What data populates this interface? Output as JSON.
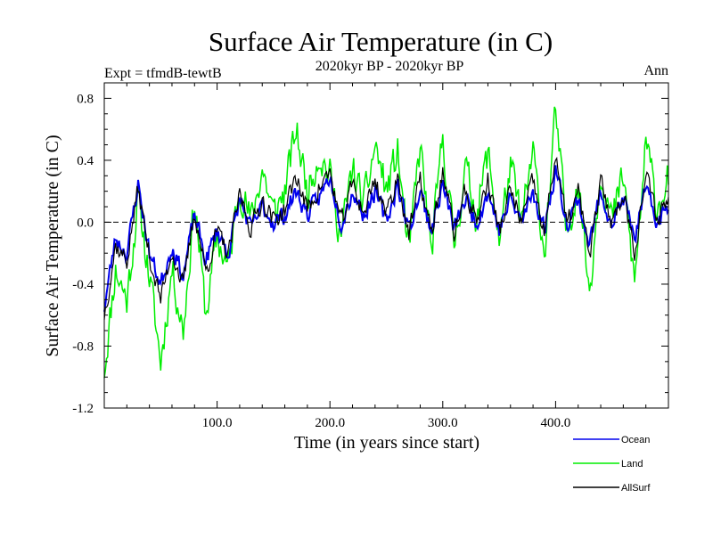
{
  "chart_data": {
    "type": "line",
    "title": "Surface Air Temperature (in C)",
    "subtitle": "2020kyr BP - 2020kyr BP",
    "left_label": "Expt = tfmdB-tewtB",
    "right_label": "Ann",
    "xlabel": "Time (in years since start)",
    "ylabel": "Surface Air Temperature (in C)",
    "xlim": [
      0,
      500
    ],
    "ylim": [
      -1.2,
      0.9
    ],
    "x_ticks": [
      100,
      200,
      300,
      400
    ],
    "x_tick_labels": [
      "100.0",
      "200.0",
      "300.0",
      "400.0"
    ],
    "y_ticks": [
      -1.2,
      -0.8,
      -0.4,
      0.0,
      0.4,
      0.8
    ],
    "y_tick_labels": [
      "-1.2",
      "-0.8",
      "-0.4",
      "0.0",
      "0.4",
      "0.8"
    ],
    "zero_line": "dashed",
    "grid": false,
    "legend_position": "bottom-right",
    "series": [
      {
        "name": "Land",
        "color": "#00ee00",
        "x": [
          0,
          10,
          20,
          30,
          40,
          50,
          60,
          70,
          80,
          90,
          100,
          110,
          120,
          130,
          140,
          150,
          160,
          170,
          180,
          190,
          200,
          210,
          220,
          230,
          240,
          250,
          260,
          270,
          280,
          290,
          300,
          310,
          320,
          330,
          340,
          350,
          360,
          370,
          380,
          390,
          400,
          410,
          420,
          430,
          440,
          450,
          460,
          470,
          480,
          490,
          500
        ],
        "values": [
          -0.95,
          -0.3,
          -0.5,
          0.15,
          -0.35,
          -0.9,
          -0.3,
          -0.7,
          0.15,
          -0.6,
          -0.1,
          -0.3,
          0.25,
          0.0,
          0.35,
          0.05,
          0.2,
          0.6,
          0.2,
          0.45,
          0.3,
          -0.1,
          0.35,
          0.1,
          0.5,
          0.2,
          0.45,
          -0.2,
          0.5,
          -0.2,
          0.55,
          -0.15,
          0.35,
          0.05,
          0.45,
          -0.1,
          0.35,
          0.0,
          0.45,
          -0.2,
          0.7,
          -0.1,
          0.3,
          -0.45,
          0.35,
          0.0,
          0.3,
          -0.4,
          0.5,
          0.1,
          0.3
        ]
      },
      {
        "name": "Ocean",
        "color": "#0000ee",
        "x": [
          0,
          10,
          20,
          30,
          40,
          50,
          60,
          70,
          80,
          90,
          100,
          110,
          120,
          130,
          140,
          150,
          160,
          170,
          180,
          190,
          200,
          210,
          220,
          230,
          240,
          250,
          260,
          270,
          280,
          290,
          300,
          310,
          320,
          330,
          340,
          350,
          360,
          370,
          380,
          390,
          400,
          410,
          420,
          430,
          440,
          450,
          460,
          470,
          480,
          490,
          500
        ],
        "values": [
          -0.55,
          -0.1,
          -0.2,
          0.25,
          -0.2,
          -0.4,
          -0.15,
          -0.35,
          0.05,
          -0.25,
          -0.05,
          -0.2,
          0.15,
          -0.05,
          0.1,
          0.0,
          0.05,
          0.2,
          0.05,
          0.15,
          0.3,
          0.0,
          0.2,
          0.05,
          0.2,
          0.0,
          0.25,
          -0.05,
          0.2,
          -0.05,
          0.25,
          -0.05,
          0.15,
          0.0,
          0.2,
          -0.05,
          0.15,
          0.0,
          0.2,
          -0.05,
          0.35,
          0.0,
          0.15,
          -0.15,
          0.2,
          0.0,
          0.15,
          -0.1,
          0.2,
          0.0,
          0.1
        ]
      },
      {
        "name": "AllSurf",
        "color": "#000000",
        "x": [
          0,
          10,
          20,
          30,
          40,
          50,
          60,
          70,
          80,
          90,
          100,
          110,
          120,
          130,
          140,
          150,
          160,
          170,
          180,
          190,
          200,
          210,
          220,
          230,
          240,
          250,
          260,
          270,
          280,
          290,
          300,
          310,
          320,
          330,
          340,
          350,
          360,
          370,
          380,
          390,
          400,
          410,
          420,
          430,
          440,
          450,
          460,
          470,
          480,
          490,
          500
        ],
        "values": [
          -0.6,
          -0.15,
          -0.25,
          0.22,
          -0.22,
          -0.5,
          -0.18,
          -0.42,
          0.07,
          -0.32,
          -0.06,
          -0.22,
          0.18,
          -0.04,
          0.15,
          0.01,
          0.08,
          0.3,
          0.08,
          0.22,
          0.32,
          -0.02,
          0.25,
          0.06,
          0.28,
          0.05,
          0.3,
          -0.08,
          0.27,
          -0.08,
          0.33,
          -0.07,
          0.2,
          0.01,
          0.27,
          -0.06,
          0.2,
          0.0,
          0.27,
          -0.09,
          0.45,
          -0.03,
          0.2,
          -0.22,
          0.25,
          0.0,
          0.2,
          -0.18,
          0.3,
          0.03,
          0.16
        ]
      }
    ],
    "legend": [
      {
        "name": "Ocean",
        "color": "#0000ee"
      },
      {
        "name": "Land",
        "color": "#00ee00"
      },
      {
        "name": "AllSurf",
        "color": "#000000"
      }
    ]
  }
}
